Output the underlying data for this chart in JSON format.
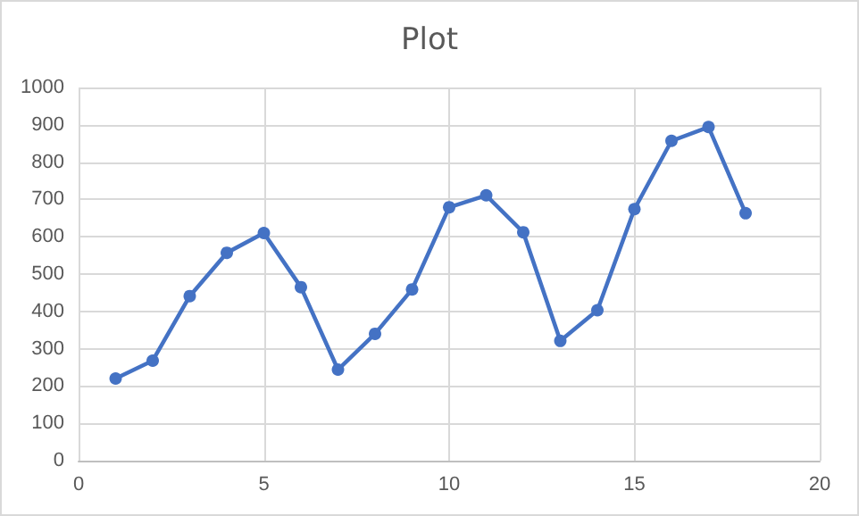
{
  "chart_data": {
    "type": "line",
    "title": "Plot",
    "x": [
      1,
      2,
      3,
      4,
      5,
      6,
      7,
      8,
      9,
      10,
      11,
      12,
      13,
      14,
      15,
      16,
      17,
      18
    ],
    "series": [
      {
        "color": "#4472c4",
        "values": [
          220,
          268,
          441,
          557,
          610,
          465,
          244,
          340,
          459,
          679,
          711,
          612,
          321,
          403,
          674,
          857,
          894,
          663
        ]
      }
    ],
    "xlim": [
      0,
      20
    ],
    "xticks": [
      0,
      5,
      10,
      15,
      20
    ],
    "ylim": [
      0,
      1000
    ],
    "yticks": [
      0,
      100,
      200,
      300,
      400,
      500,
      600,
      700,
      800,
      900,
      1000
    ],
    "grid": true,
    "marker": "circle",
    "line_style": "solid"
  }
}
